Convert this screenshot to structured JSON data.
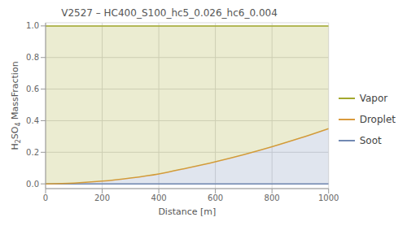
{
  "chart_data": {
    "type": "area",
    "title": "V2527 – HC400_S100_hc5_0.026_hc6_0.004",
    "x_label": "Distance [m]",
    "y_label": "H2SO4 MassFraction",
    "x": [
      0,
      100,
      200,
      300,
      400,
      500,
      600,
      700,
      800,
      900,
      1000
    ],
    "series": [
      {
        "name": "Vapor",
        "color": "#a3a82d",
        "values": [
          1.0,
          0.995,
          0.983,
          0.963,
          0.937,
          0.9,
          0.86,
          0.815,
          0.765,
          0.71,
          0.65
        ]
      },
      {
        "name": "Droplet",
        "color": "#d99a3c",
        "values": [
          0.0,
          0.005,
          0.017,
          0.037,
          0.063,
          0.1,
          0.14,
          0.185,
          0.235,
          0.29,
          0.35
        ]
      },
      {
        "name": "Soot",
        "color": "#7189b2",
        "values": [
          0,
          0,
          0,
          0,
          0,
          0,
          0,
          0,
          0,
          0,
          0
        ]
      }
    ],
    "stacked": true,
    "xlim": [
      0,
      1000
    ],
    "xticks": [
      0,
      200,
      400,
      600,
      800,
      1000
    ],
    "ylim": [
      -0.03,
      1.02
    ],
    "yticks": [
      {
        "value": 0,
        "label": "0.0"
      },
      {
        "value": 0.2,
        "label": "0.2"
      },
      {
        "value": 0.4,
        "label": "0.4"
      },
      {
        "value": 0.6,
        "label": "0.6"
      },
      {
        "value": 0.8,
        "label": "0.8"
      },
      {
        "value": 1.0,
        "label": "1.0"
      }
    ],
    "grid": true,
    "legend": "right"
  }
}
